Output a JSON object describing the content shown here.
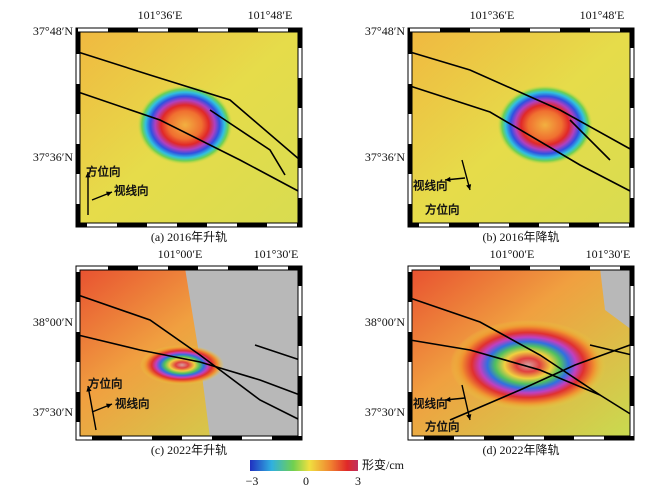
{
  "panels": [
    {
      "caption": "(a) 2016年升轨",
      "lon_labels": [
        "101°36′E",
        "101°48′E"
      ],
      "lat_labels": [
        "37°48′N",
        "37°36′N"
      ],
      "arrow_labels": [
        "方位向",
        "视线向"
      ]
    },
    {
      "caption": "(b) 2016年降轨",
      "lon_labels": [
        "101°36′E",
        "101°48′E"
      ],
      "lat_labels": [
        "37°48′N",
        "37°36′N"
      ],
      "arrow_labels": [
        "视线向",
        "方位向"
      ]
    },
    {
      "caption": "(c) 2022年升轨",
      "lon_labels": [
        "101°00′E",
        "101°30′E"
      ],
      "lat_labels": [
        "38°00′N",
        "37°30′N"
      ],
      "arrow_labels": [
        "方位向",
        "视线向"
      ]
    },
    {
      "caption": "(d) 2022年降轨",
      "lon_labels": [
        "101°00′E",
        "101°30′E"
      ],
      "lat_labels": [
        "38°00′N",
        "37°30′N"
      ],
      "arrow_labels": [
        "视线向",
        "方位向"
      ]
    }
  ],
  "colorbar": {
    "ticks": [
      "−3",
      "0",
      "3"
    ],
    "label": "形变/cm"
  }
}
